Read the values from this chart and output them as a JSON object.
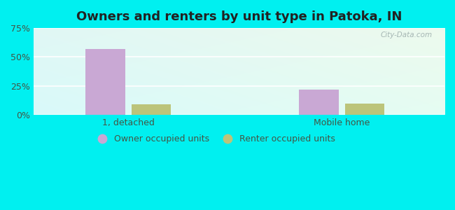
{
  "title": "Owners and renters by unit type in Patoka, IN",
  "categories": [
    "1, detached",
    "Mobile home"
  ],
  "owner_values": [
    57,
    22
  ],
  "renter_values": [
    9,
    10
  ],
  "owner_color": "#c9a8d4",
  "renter_color": "#bcc47a",
  "bar_width": 0.25,
  "ylim": [
    0,
    75
  ],
  "yticks": [
    0,
    25,
    50,
    75
  ],
  "ytick_labels": [
    "0%",
    "25%",
    "50%",
    "75%"
  ],
  "outer_bg": "#00f0f0",
  "plot_bg_topleft": "#d8f0d8",
  "plot_bg_topright": "#f0faf8",
  "plot_bg_bottom": "#c8eee8",
  "legend_owner": "Owner occupied units",
  "legend_renter": "Renter occupied units",
  "watermark": "City-Data.com",
  "title_fontsize": 13,
  "axis_label_fontsize": 9,
  "legend_fontsize": 9,
  "group_positions": [
    0.5,
    1.85
  ],
  "xlim": [
    -0.1,
    2.5
  ]
}
